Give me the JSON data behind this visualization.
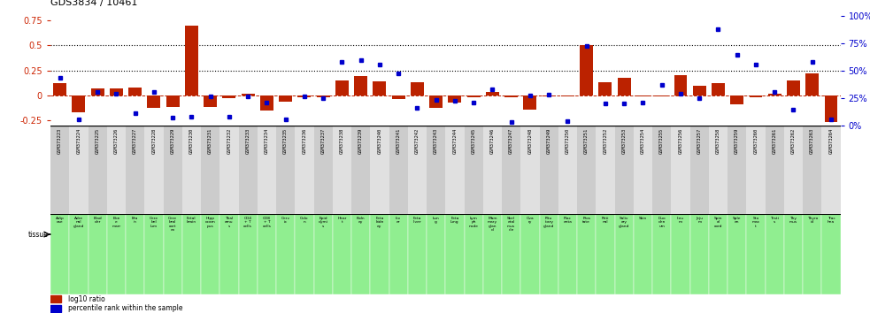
{
  "title": "GDS3834 / 10461",
  "gsm_labels": [
    "GSM373223",
    "GSM373224",
    "GSM373225",
    "GSM373226",
    "GSM373227",
    "GSM373228",
    "GSM373229",
    "GSM373230",
    "GSM373231",
    "GSM373232",
    "GSM373233",
    "GSM373234",
    "GSM373235",
    "GSM373236",
    "GSM373237",
    "GSM373238",
    "GSM373239",
    "GSM373240",
    "GSM373241",
    "GSM373242",
    "GSM373243",
    "GSM373244",
    "GSM373245",
    "GSM373246",
    "GSM373247",
    "GSM373248",
    "GSM373249",
    "GSM373250",
    "GSM373251",
    "GSM373252",
    "GSM373253",
    "GSM373254",
    "GSM373255",
    "GSM373256",
    "GSM373257",
    "GSM373258",
    "GSM373259",
    "GSM373260",
    "GSM373261",
    "GSM373262",
    "GSM373263",
    "GSM373264"
  ],
  "tissue_labels": [
    "Adip\nose",
    "Adre\nnal\ngland",
    "Blad\nder",
    "Bon\ne\nmarr",
    "Bra\nin",
    "Cere\nbel\nlum",
    "Cere\nbral\ncort\nex",
    "Fetal\nbrain",
    "Hipp\nocam\npus",
    "Thal\namu\ns",
    "CD4\n+ T\ncells",
    "CD8\n+ T\ncells",
    "Cerv\nix",
    "Colo\nn",
    "Epid\ndymi\ns",
    "Hear\nt",
    "Kidn\ney",
    "Feta\nkidn\ney",
    "Liv\ner",
    "Feta\nliver",
    "Lun\ng",
    "Feta\nlung",
    "Lym\nph\nnode",
    "Mam\nmary\nglan\nd",
    "Skel\netal\nmus\ncle",
    "Ova\nry",
    "Pitu\nitary\ngland",
    "Plac\nenta",
    "Pros\ntate",
    "Reti\nnal",
    "Saliv\nary\ngland",
    "Skin",
    "Duo\nden\num",
    "Ileu\nm",
    "Jeju\nm",
    "Spin\nal\ncord",
    "Sple\nen",
    "Sto\nmac\nt",
    "Testi\ns",
    "Thy\nmus",
    "Thyro\nid",
    "Trac\nhea"
  ],
  "log10_ratio": [
    0.12,
    -0.17,
    0.07,
    0.07,
    0.08,
    -0.13,
    -0.12,
    0.7,
    -0.12,
    -0.03,
    0.02,
    -0.15,
    -0.06,
    -0.02,
    -0.02,
    0.15,
    0.19,
    0.14,
    -0.04,
    0.13,
    -0.13,
    -0.07,
    -0.02,
    0.03,
    -0.02,
    -0.14,
    -0.01,
    -0.01,
    0.5,
    0.13,
    0.18,
    -0.01,
    -0.01,
    0.2,
    0.1,
    0.12,
    -0.09,
    -0.02,
    0.02,
    0.15,
    0.22,
    -0.27
  ],
  "percentile_rank": [
    43,
    5,
    30,
    29,
    11,
    30,
    7,
    8,
    26,
    8,
    26,
    21,
    5,
    26,
    25,
    58,
    59,
    55,
    47,
    16,
    23,
    22,
    21,
    33,
    3,
    27,
    28,
    4,
    72,
    20,
    20,
    21,
    37,
    29,
    25,
    88,
    64,
    55,
    30,
    14,
    58,
    5
  ],
  "ylim_left": [
    -0.3,
    0.8
  ],
  "ylim_right": [
    0,
    100
  ],
  "bar_color": "#bb2200",
  "dot_color": "#0000cc",
  "left_axis_color": "#cc2200",
  "right_axis_color": "#0000cc",
  "yticks_left": [
    -0.25,
    0,
    0.25,
    0.5,
    0.75
  ],
  "yticks_left_labels": [
    "-0.25",
    "0",
    "0.25",
    "0.5",
    "0.75"
  ],
  "yticks_right": [
    0,
    25,
    50,
    75,
    100
  ],
  "yticks_right_labels": [
    "0%",
    "25%",
    "50%",
    "75%",
    "100%"
  ],
  "hlines": [
    0.25,
    0.5
  ],
  "tissue_bg_color": "#90ee90",
  "gsm_bg_even": "#cccccc",
  "gsm_bg_odd": "#e0e0e0"
}
